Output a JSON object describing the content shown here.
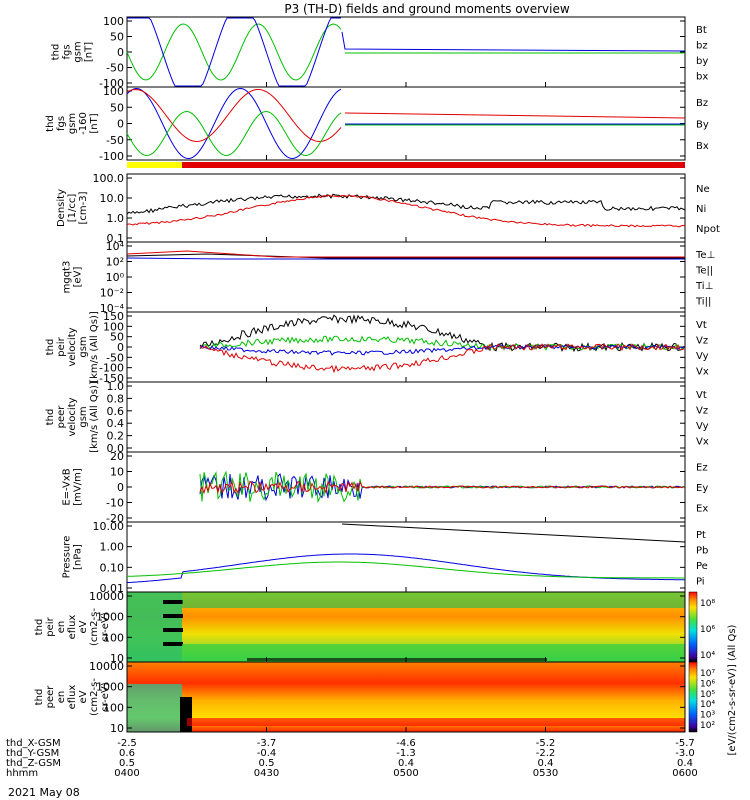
{
  "title": "P3 (TH-D) fields and ground moments overview",
  "date_label": "2021 May 08",
  "colors": {
    "black": "#000000",
    "red": "#e00000",
    "green": "#00c000",
    "blue": "#0000e0",
    "yellow": "#ffff00"
  },
  "chart_data": [
    {
      "type": "line",
      "panel": "fgs-gsm",
      "ylabel": [
        "thd",
        "fgs",
        "gsm",
        "[nT]"
      ],
      "yticks": [
        "100",
        "50",
        "0",
        "-50",
        "-100"
      ],
      "ylim": [
        -100,
        100
      ],
      "legend": [
        {
          "label": "Bt",
          "color": "black"
        },
        {
          "label": "bz",
          "color": "red"
        },
        {
          "label": "by",
          "color": "green"
        },
        {
          "label": "bx",
          "color": "blue"
        }
      ]
    },
    {
      "type": "line",
      "panel": "fgs-gsm-filtered",
      "ylabel": [
        "thd",
        "fgs",
        "gsm",
        "-160",
        "[nT]"
      ],
      "yticks": [
        "100",
        "50",
        "0",
        "-50",
        "-100"
      ],
      "ylim": [
        -120,
        100
      ],
      "legend": [
        {
          "label": "Bz",
          "color": "red"
        },
        {
          "label": "By",
          "color": "green"
        },
        {
          "label": "Bx",
          "color": "blue"
        }
      ],
      "mode_bar": [
        {
          "color": "yellow",
          "from": "0400",
          "to": "0410"
        },
        {
          "color": "red",
          "from": "0410",
          "to": "0600"
        }
      ]
    },
    {
      "type": "line",
      "panel": "density",
      "scale": "log",
      "ylabel": [
        "Density",
        "[1/cc]",
        "[cm-3]"
      ],
      "yticks": [
        "100.0",
        "10.0",
        "1.0",
        "0.1"
      ],
      "ylim": [
        0.05,
        150
      ],
      "legend": [
        {
          "label": "Ne",
          "color": "red"
        },
        {
          "label": "Ni",
          "color": "black"
        },
        {
          "label": "Npot",
          "color": "blue"
        }
      ]
    },
    {
      "type": "line",
      "panel": "temperature",
      "scale": "log",
      "ylabel": [
        "mgqt3",
        "[eV]"
      ],
      "yticks": [
        "10⁴",
        "10²",
        "10⁰",
        "10⁻²",
        "10⁻⁴"
      ],
      "legend": [
        {
          "label": "Te⊥",
          "color": "red"
        },
        {
          "label": "Te||",
          "color": "black"
        },
        {
          "label": "Ti⊥",
          "color": "blue"
        },
        {
          "label": "Ti||",
          "color": "green"
        }
      ]
    },
    {
      "type": "line",
      "panel": "peir-velocity",
      "ylabel": [
        "thd",
        "peir",
        "velocity",
        "gsm",
        "[km/s (All Qs)]"
      ],
      "yticks": [
        "150",
        "100",
        "50",
        "0",
        "-50",
        "-100",
        "-150"
      ],
      "ylim": [
        -150,
        150
      ],
      "legend": [
        {
          "label": "Vt",
          "color": "black"
        },
        {
          "label": "Vz",
          "color": "red"
        },
        {
          "label": "Vy",
          "color": "green"
        },
        {
          "label": "Vx",
          "color": "blue"
        }
      ]
    },
    {
      "type": "line",
      "panel": "peer-velocity",
      "ylabel": [
        "thd",
        "peer",
        "velocity",
        "gsm",
        "[km/s (All Qs)]"
      ],
      "yticks": [
        "1.0",
        "0.8",
        "0.6",
        "0.4",
        "0.2",
        "0.0"
      ],
      "ylim": [
        0,
        1
      ],
      "legend": [
        {
          "label": "Vt",
          "color": "black"
        },
        {
          "label": "Vz",
          "color": "red"
        },
        {
          "label": "Vy",
          "color": "green"
        },
        {
          "label": "Vx",
          "color": "blue"
        }
      ]
    },
    {
      "type": "line",
      "panel": "e-field",
      "ylabel": [
        "E=-VxB",
        "[mV/m]"
      ],
      "yticks": [
        "20",
        "10",
        "0",
        "-10",
        "-20"
      ],
      "ylim": [
        -20,
        20
      ],
      "legend": [
        {
          "label": "Ez",
          "color": "red"
        },
        {
          "label": "Ey",
          "color": "green"
        },
        {
          "label": "Ex",
          "color": "blue"
        }
      ]
    },
    {
      "type": "line",
      "panel": "pressure",
      "scale": "log",
      "ylabel": [
        "Pressure",
        "[nPa]"
      ],
      "yticks": [
        "10.00",
        "1.00",
        "0.10",
        "0.01"
      ],
      "ylim": [
        0.005,
        30
      ],
      "legend": [
        {
          "label": "Pt",
          "color": "black"
        },
        {
          "label": "Pb",
          "color": "red"
        },
        {
          "label": "Pe",
          "color": "green"
        },
        {
          "label": "Pi",
          "color": "blue"
        }
      ]
    },
    {
      "type": "heatmap",
      "panel": "peir-eflux",
      "ylabel": [
        "thd",
        "peir",
        "en",
        "eflux",
        "eV",
        "(cm2-s-",
        "sr-eV)"
      ],
      "yticks": [
        "10000",
        "1000",
        "100",
        "10"
      ]
    },
    {
      "type": "heatmap",
      "panel": "peer-eflux",
      "ylabel": [
        "thd",
        "peer",
        "en",
        "eflux",
        "eV",
        "(cm2-s-",
        "sr-eV)"
      ],
      "yticks": [
        "10000",
        "1000",
        "100",
        "10"
      ]
    }
  ],
  "colorbar": {
    "label": "[eV/(cm2-s-sr-eV)] (All Qs)",
    "ticks_top": [
      "10⁸",
      "10⁶",
      "10⁴"
    ],
    "ticks_bottom": [
      "10⁷",
      "10⁶",
      "10⁵",
      "10⁴",
      "10³",
      "10²"
    ]
  },
  "xaxis": {
    "rows": [
      {
        "label": "thd_X-GSM",
        "values": [
          "-2.5",
          "-3.7",
          "-4.6",
          "-5.2",
          "-5.7"
        ]
      },
      {
        "label": "thd_Y-GSM",
        "values": [
          "0.6",
          "-0.4",
          "-1.3",
          "-2.2",
          "-3.0"
        ]
      },
      {
        "label": "thd_Z-GSM",
        "values": [
          "0.5",
          "0.5",
          "0.4",
          "0.4",
          "0.4"
        ]
      },
      {
        "label": "hhmm",
        "values": [
          "0400",
          "0430",
          "0500",
          "0530",
          "0600"
        ]
      }
    ]
  }
}
